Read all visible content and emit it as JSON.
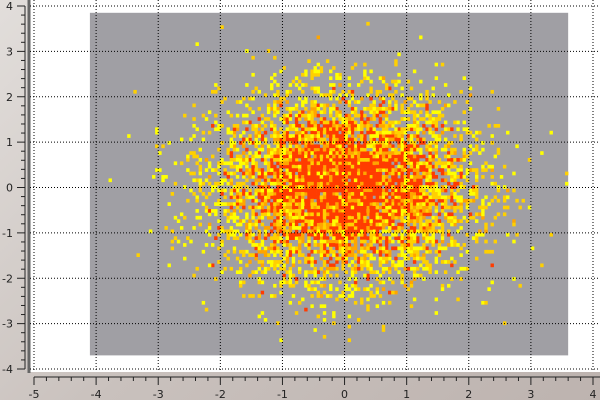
{
  "chart_data": {
    "type": "heatmap",
    "title": "",
    "xlabel": "",
    "ylabel": "",
    "xlim": [
      -5,
      4
    ],
    "ylim": [
      -4,
      4
    ],
    "x_ticks": [
      "-5",
      "-4",
      "-3",
      "-2",
      "-1",
      "0",
      "1",
      "2",
      "3",
      "4"
    ],
    "y_ticks": [
      "-4",
      "-3",
      "-2",
      "-1",
      "0",
      "1",
      "2",
      "3",
      "4"
    ],
    "grid": true,
    "grid_style": "dotted",
    "histogram_extent": {
      "x": [
        -4.1,
        3.6
      ],
      "y": [
        -3.7,
        3.85
      ]
    },
    "distribution": {
      "kind": "2D normal",
      "mean": [
        0,
        0
      ],
      "std": [
        1,
        1
      ],
      "samples": 10000
    },
    "colors": {
      "empty": "#a09fa4",
      "low": "#ffff00",
      "mid": "#ffa500",
      "high": "#ff3c00",
      "canvas": "#ffffff"
    }
  }
}
